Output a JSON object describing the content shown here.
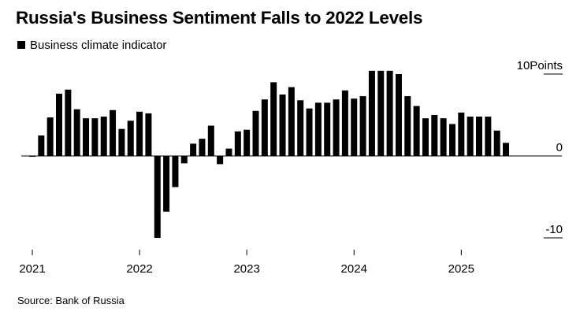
{
  "chart_data": {
    "type": "bar",
    "title": "Russia's Business Sentiment Falls to 2022 Levels",
    "legend": [
      "Business climate indicator"
    ],
    "series": [
      {
        "name": "Business climate indicator",
        "color": "#000000",
        "values": [
          -0.1,
          2.5,
          4.7,
          7.6,
          8.1,
          5.7,
          4.6,
          4.6,
          4.8,
          5.6,
          3.3,
          4.3,
          5.4,
          5.2,
          -10.0,
          -6.8,
          -3.8,
          -0.9,
          1.5,
          2.1,
          3.7,
          -1.0,
          0.9,
          3.0,
          3.2,
          5.5,
          6.9,
          9.0,
          7.5,
          8.4,
          6.8,
          5.8,
          6.5,
          6.5,
          6.9,
          8.0,
          7.0,
          7.3,
          10.4,
          10.4,
          10.4,
          10.0,
          7.3,
          6.1,
          4.6,
          5.0,
          4.6,
          3.9,
          5.3,
          4.8,
          4.8,
          4.8,
          3.1,
          1.6
        ]
      }
    ],
    "x_tick_labels": [
      "2021",
      "2022",
      "2023",
      "2024",
      "2025"
    ],
    "y_tick_labels": [
      {
        "value": 10,
        "label": "10Points"
      },
      {
        "value": 0,
        "label": "0"
      },
      {
        "value": -10,
        "label": "-10"
      }
    ],
    "ylim": [
      -10.5,
      11
    ],
    "xlabel": "",
    "ylabel": "Points",
    "grid": false,
    "source": "Source: Bank of Russia"
  }
}
